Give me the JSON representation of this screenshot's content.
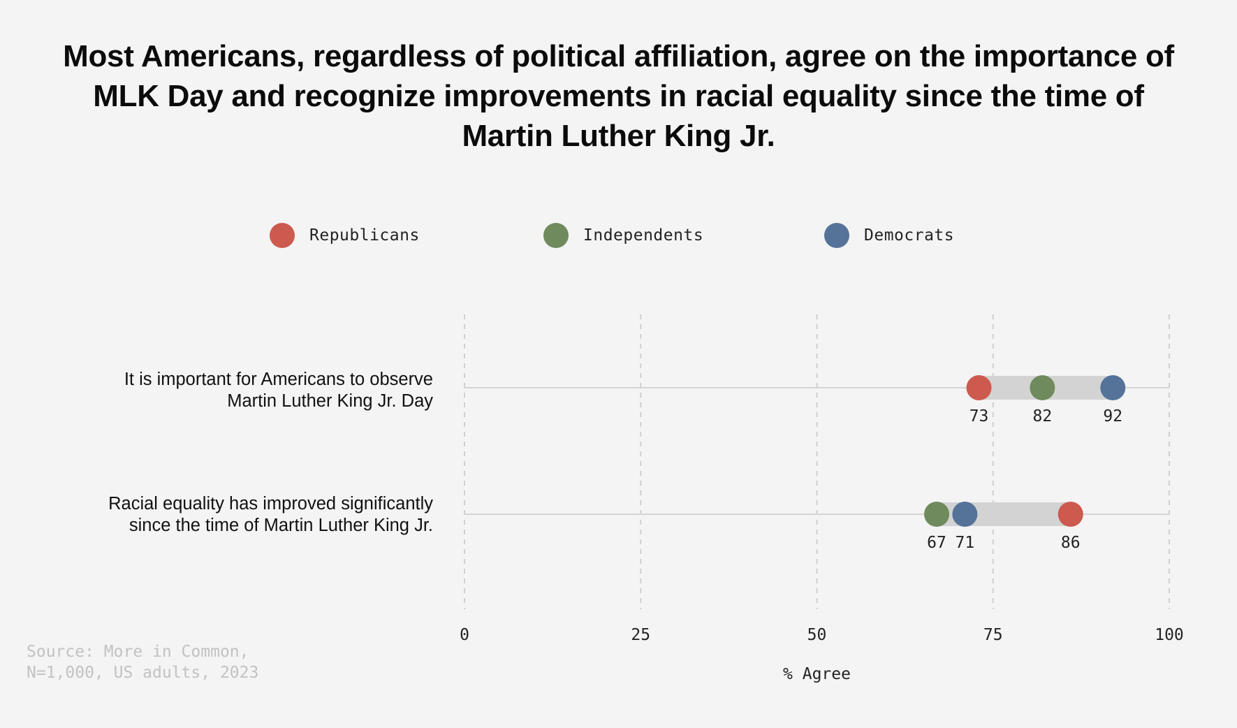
{
  "title": "Most Americans, regardless of political affiliation, agree on the importance of MLK Day and recognize improvements in racial equality since the time of Martin Luther King Jr.",
  "legend": [
    {
      "label": "Republicans",
      "color": "#cc5a4f"
    },
    {
      "label": "Independents",
      "color": "#6f8a5c"
    },
    {
      "label": "Democrats",
      "color": "#557299"
    }
  ],
  "source": {
    "line1": "Source: More in Common,",
    "line2": "N=1,000, US adults, 2023"
  },
  "chart_data": {
    "type": "dot-range",
    "title": "Most Americans, regardless of political affiliation, agree on the importance of MLK Day and recognize improvements in racial equality since the time of Martin Luther King Jr.",
    "xlabel": "% Agree",
    "xlim": [
      0,
      100
    ],
    "xticks": [
      0,
      25,
      50,
      75,
      100
    ],
    "grid": "vertical dashed",
    "legend_position": "top-center",
    "categories": [
      {
        "line1": "It is important for Americans to observe",
        "line2": "Martin Luther King Jr. Day"
      },
      {
        "line1": "Racial equality has improved significantly",
        "line2": "since the time of Martin Luther King Jr."
      }
    ],
    "series": [
      {
        "name": "Republicans",
        "color": "#cc5a4f",
        "values": [
          73,
          86
        ]
      },
      {
        "name": "Independents",
        "color": "#6f8a5c",
        "values": [
          82,
          67
        ]
      },
      {
        "name": "Democrats",
        "color": "#557299",
        "values": [
          92,
          71
        ]
      }
    ]
  }
}
